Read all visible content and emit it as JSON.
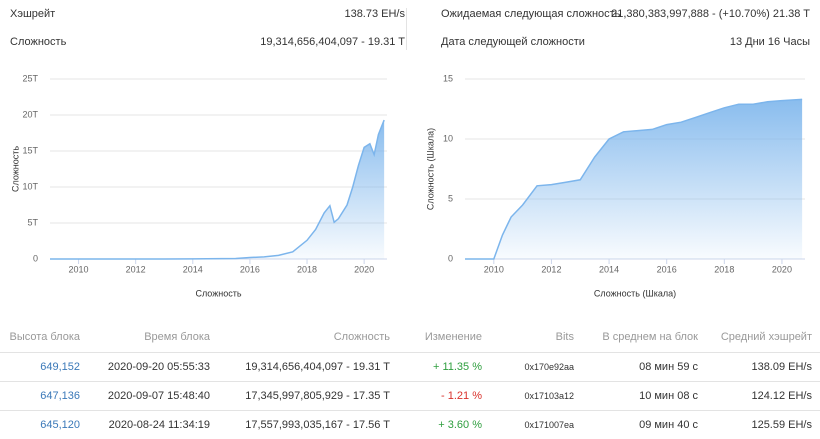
{
  "stats": [
    {
      "label": "Хэшрейт",
      "value": "138.73 EH/s"
    },
    {
      "label": "Сложность",
      "value": "19,314,656,404,097 - 19.31 T"
    },
    {
      "label": "Ожидаемая следующая сложность",
      "value": "21,380,383,997,888 - (+10.70%) 21.38 T"
    },
    {
      "label": "Дата следующей сложности",
      "value": "13 Дни 16 Часы"
    }
  ],
  "chart_data": [
    {
      "type": "area",
      "y_label": "Сложность",
      "x_label": "Сложность",
      "color": "#7cb5ec",
      "grid": true,
      "x": [
        2009,
        2010,
        2011,
        2012,
        2013,
        2014,
        2015,
        2015.5,
        2016,
        2016.5,
        2017,
        2017.5,
        2018,
        2018.3,
        2018.6,
        2018.8,
        2018.95,
        2019.1,
        2019.4,
        2019.6,
        2019.8,
        2020,
        2020.2,
        2020.35,
        2020.5,
        2020.7
      ],
      "values": [
        0,
        0,
        0,
        0,
        0,
        10000000000,
        50000000000,
        70000000000,
        200000000000,
        300000000000,
        500000000000,
        1000000000000,
        2600000000000,
        4100000000000,
        6400000000000,
        7400000000000,
        5100000000000,
        5600000000000,
        7500000000000,
        10000000000000,
        13000000000000,
        15500000000000,
        16000000000000,
        14500000000000,
        17300000000000,
        19300000000000
      ],
      "xlim": [
        2009,
        2020.8
      ],
      "xticks": [
        2010,
        2012,
        2014,
        2016,
        2018,
        2020
      ],
      "ylim": [
        0,
        25000000000000
      ],
      "yticks": [
        0,
        {
          "value": 5000000000000,
          "label": "5T"
        },
        {
          "value": 10000000000000,
          "label": "10T"
        },
        {
          "value": 15000000000000,
          "label": "15T"
        },
        {
          "value": 20000000000000,
          "label": "20T"
        },
        {
          "value": 25000000000000,
          "label": "25T"
        }
      ]
    },
    {
      "type": "area",
      "y_label": "Сложность (Шкала)",
      "x_label": "Сложность (Шкала)",
      "color": "#7cb5ec",
      "grid": true,
      "x": [
        2009,
        2010,
        2010.3,
        2010.6,
        2011,
        2011.5,
        2012,
        2012.5,
        2013,
        2013.5,
        2014,
        2014.5,
        2015,
        2015.5,
        2016,
        2016.5,
        2017,
        2017.5,
        2018,
        2018.5,
        2019,
        2019.5,
        2020,
        2020.7
      ],
      "values": [
        0,
        0,
        2,
        3.5,
        4.5,
        6.1,
        6.2,
        6.4,
        6.6,
        8.5,
        10,
        10.6,
        10.7,
        10.8,
        11.2,
        11.4,
        11.8,
        12.2,
        12.6,
        12.9,
        12.9,
        13.1,
        13.2,
        13.3
      ],
      "xlim": [
        2009,
        2020.8
      ],
      "xticks": [
        2010,
        2012,
        2014,
        2016,
        2018,
        2020
      ],
      "ylim": [
        0,
        15
      ],
      "yticks": [
        0,
        5,
        10,
        15
      ]
    }
  ],
  "table": {
    "headers": [
      "Высота блока",
      "Время блока",
      "Сложность",
      "Изменение",
      "Bits",
      "В среднем на блок",
      "Средний хэшрейт"
    ],
    "rows": [
      {
        "cells": [
          "649,152",
          "2020-09-20 05:55:33",
          "19,314,656,404,097 - 19.31 T",
          "+ 11.35 %",
          "0x170e92aa",
          "08 мин 59 с",
          "138.09 EH/s"
        ],
        "change_color": "#2e9e3e"
      },
      {
        "cells": [
          "647,136",
          "2020-09-07 15:48:40",
          "17,345,997,805,929 - 17.35 T",
          "- 1.21 %",
          "0x17103a12",
          "10 мин 08 с",
          "124.12 EH/s"
        ],
        "change_color": "#d9302a"
      },
      {
        "cells": [
          "645,120",
          "2020-08-24 11:34:19",
          "17,557,993,035,167 - 17.56 T",
          "+ 3.60 %",
          "0x171007ea",
          "09 мин 40 с",
          "125.59 EH/s"
        ],
        "change_color": "#2e9e3e"
      }
    ]
  }
}
